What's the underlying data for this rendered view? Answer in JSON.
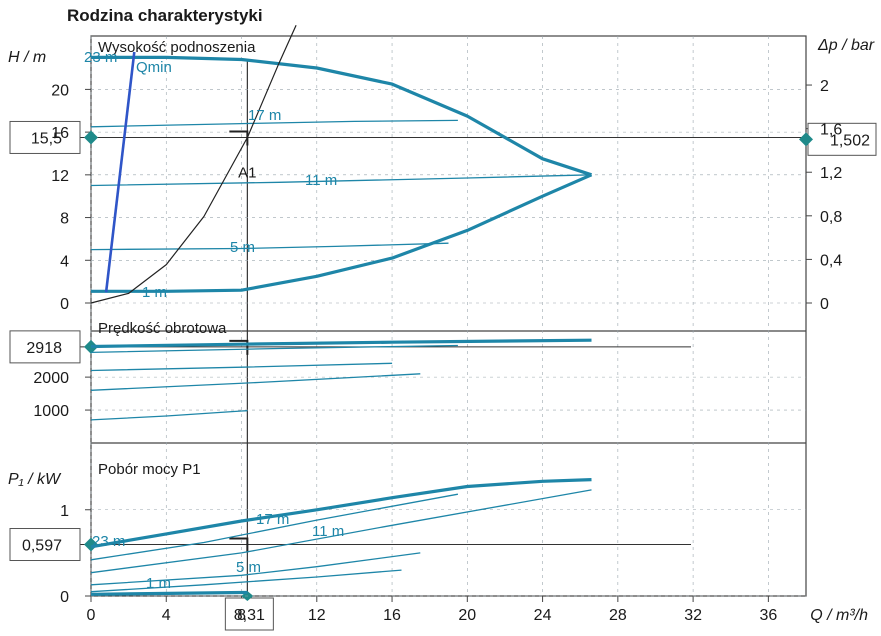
{
  "chart_data": {
    "type": "line",
    "title": "Rodzina charakterystyki",
    "colors": {
      "curve": "#1e86a8",
      "qmin": "#2f55c8",
      "system": "#222222",
      "marker": "#1f8a8a",
      "grid": "#9aa6ad"
    },
    "x_axis": {
      "label": "Q / m³/h",
      "ticks": [
        0,
        4,
        8,
        12,
        16,
        20,
        24,
        28,
        32,
        36
      ],
      "range": [
        0,
        38
      ]
    },
    "operating_point": {
      "label": "A1",
      "Q": 8.31,
      "Q_label": "8,31"
    },
    "panels": [
      {
        "id": "head",
        "title": "Wysokość podnoszenia",
        "ylabel": "H / m",
        "ylim": [
          0,
          25
        ],
        "yticks": [
          0,
          4,
          8,
          12,
          16,
          20
        ],
        "right_axis": {
          "label": "Δp / bar",
          "ticks": [
            0,
            0.4,
            0.8,
            1.2,
            1.6,
            2
          ],
          "tick_labels": [
            "0",
            "0,4",
            "0,8",
            "1,2",
            "1,6",
            "2"
          ],
          "range": [
            0,
            2.45
          ]
        },
        "marker_left": {
          "value": 15.5,
          "label": "15,5"
        },
        "marker_right": {
          "value": 1.502,
          "label": "1,502"
        },
        "qmin_label": "Qmin",
        "series": [
          {
            "label": "23 m",
            "thick": true,
            "points": [
              [
                0,
                23
              ],
              [
                4,
                23
              ],
              [
                8,
                22.8
              ],
              [
                12,
                22
              ],
              [
                16,
                20.5
              ],
              [
                20,
                17.5
              ],
              [
                24,
                13.5
              ],
              [
                26.6,
                12
              ]
            ]
          },
          {
            "label": "17 m",
            "thick": false,
            "points": [
              [
                0,
                16.5
              ],
              [
                8,
                16.8
              ],
              [
                14,
                17
              ],
              [
                19.5,
                17.1
              ]
            ]
          },
          {
            "label": "11 m",
            "thick": false,
            "points": [
              [
                0,
                11
              ],
              [
                10,
                11.3
              ],
              [
                20,
                11.7
              ],
              [
                26.6,
                12
              ]
            ]
          },
          {
            "label": "5 m",
            "thick": false,
            "points": [
              [
                0,
                5
              ],
              [
                8,
                5.1
              ],
              [
                13,
                5.3
              ],
              [
                19,
                5.6
              ]
            ]
          },
          {
            "label": "1 m",
            "thick": true,
            "points": [
              [
                0,
                1.1
              ],
              [
                4,
                1.1
              ],
              [
                8,
                1.2
              ],
              [
                12,
                2.5
              ],
              [
                16,
                4.2
              ],
              [
                20,
                6.8
              ],
              [
                24,
                10
              ],
              [
                26.6,
                12
              ]
            ]
          },
          {
            "label": "",
            "role": "qmin",
            "points": [
              [
                0.8,
                1
              ],
              [
                2.3,
                23.5
              ]
            ]
          },
          {
            "label": "",
            "role": "system",
            "points": [
              [
                0,
                0
              ],
              [
                2,
                0.9
              ],
              [
                4,
                3.6
              ],
              [
                6,
                8.1
              ],
              [
                8.31,
                15.5
              ],
              [
                10,
                22.5
              ],
              [
                10.9,
                26
              ]
            ]
          }
        ]
      },
      {
        "id": "speed",
        "title": "Prędkość obrotowa",
        "ylabel": "",
        "ylim": [
          0,
          3400
        ],
        "yticks": [
          1000,
          2000
        ],
        "marker_left": {
          "value": 2918,
          "label": "2918"
        },
        "series": [
          {
            "label": "",
            "thick": true,
            "points": [
              [
                0,
                2930
              ],
              [
                8,
                3000
              ],
              [
                16,
                3060
              ],
              [
                26.6,
                3120
              ]
            ]
          },
          {
            "label": "",
            "thick": false,
            "points": [
              [
                0,
                2750
              ],
              [
                10,
                2870
              ],
              [
                19.5,
                2960
              ]
            ]
          },
          {
            "label": "",
            "thick": false,
            "points": [
              [
                0,
                2200
              ],
              [
                8,
                2300
              ],
              [
                16,
                2420
              ]
            ]
          },
          {
            "label": "",
            "thick": false,
            "points": [
              [
                0,
                1600
              ],
              [
                9,
                1840
              ],
              [
                17.5,
                2100
              ]
            ]
          },
          {
            "label": "",
            "thick": false,
            "points": [
              [
                0,
                700
              ],
              [
                4,
                820
              ],
              [
                8,
                970
              ],
              [
                8.31,
                980
              ]
            ]
          }
        ]
      },
      {
        "id": "power",
        "title": "Pobór mocy P1",
        "ylabel": "P₁ / kW",
        "ylim": [
          0,
          1.6
        ],
        "yticks": [
          0,
          1
        ],
        "marker_left": {
          "value": 0.597,
          "label": "0,597"
        },
        "series": [
          {
            "label": "23 m",
            "thick": true,
            "points": [
              [
                0,
                0.57
              ],
              [
                4,
                0.72
              ],
              [
                8,
                0.87
              ],
              [
                12,
                1.0
              ],
              [
                16,
                1.14
              ],
              [
                20,
                1.27
              ],
              [
                24,
                1.33
              ],
              [
                26.6,
                1.35
              ]
            ]
          },
          {
            "label": "17 m",
            "thick": false,
            "points": [
              [
                0,
                0.42
              ],
              [
                6,
                0.62
              ],
              [
                12,
                0.88
              ],
              [
                19.5,
                1.18
              ]
            ]
          },
          {
            "label": "11 m",
            "thick": false,
            "points": [
              [
                0,
                0.27
              ],
              [
                8,
                0.5
              ],
              [
                16,
                0.82
              ],
              [
                26.6,
                1.23
              ]
            ]
          },
          {
            "label": "5 m",
            "thick": false,
            "points": [
              [
                0,
                0.13
              ],
              [
                8,
                0.24
              ],
              [
                12,
                0.34
              ],
              [
                17.5,
                0.5
              ]
            ]
          },
          {
            "label": "1 m",
            "thick": true,
            "points": [
              [
                0,
                0.02
              ],
              [
                8,
                0.04
              ],
              [
                8.31,
                0.04
              ]
            ]
          },
          {
            "label": "",
            "thick": false,
            "points": [
              [
                0,
                0.05
              ],
              [
                6,
                0.13
              ],
              [
                12,
                0.22
              ],
              [
                16.5,
                0.3
              ]
            ]
          }
        ]
      }
    ]
  }
}
